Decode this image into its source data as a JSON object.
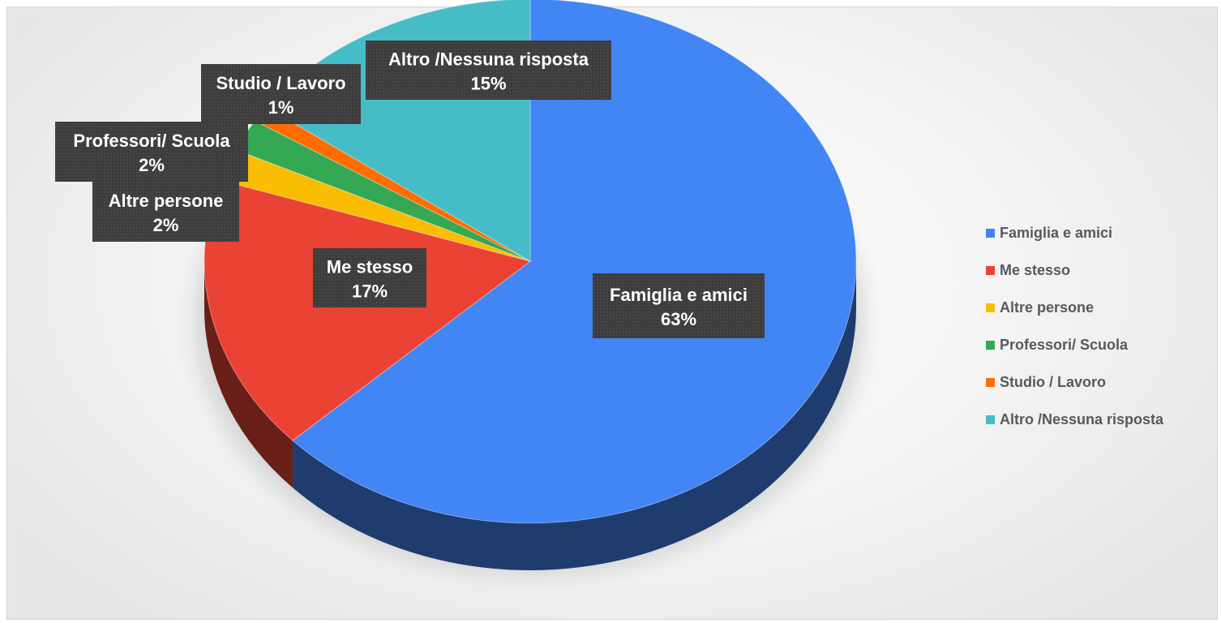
{
  "chart_data": {
    "type": "pie",
    "title": "",
    "slices": [
      {
        "label": "Famiglia e amici",
        "value": 63,
        "display": "63%",
        "color": "#4285F4"
      },
      {
        "label": "Me stesso",
        "value": 17,
        "display": "17%",
        "color": "#EA4335"
      },
      {
        "label": "Altre persone",
        "value": 2,
        "display": "2%",
        "color": "#FBBC04"
      },
      {
        "label": "Professori/ Scuola",
        "value": 2,
        "display": "2%",
        "color": "#34A853"
      },
      {
        "label": "Studio / Lavoro",
        "value": 1,
        "display": "1%",
        "color": "#FF6D01"
      },
      {
        "label": "Altro /Nessuna risposta",
        "value": 15,
        "display": "15%",
        "color": "#46BDC6"
      }
    ],
    "legend_position": "right",
    "style": "3d",
    "data_labels": "dark-callout-boxes"
  }
}
